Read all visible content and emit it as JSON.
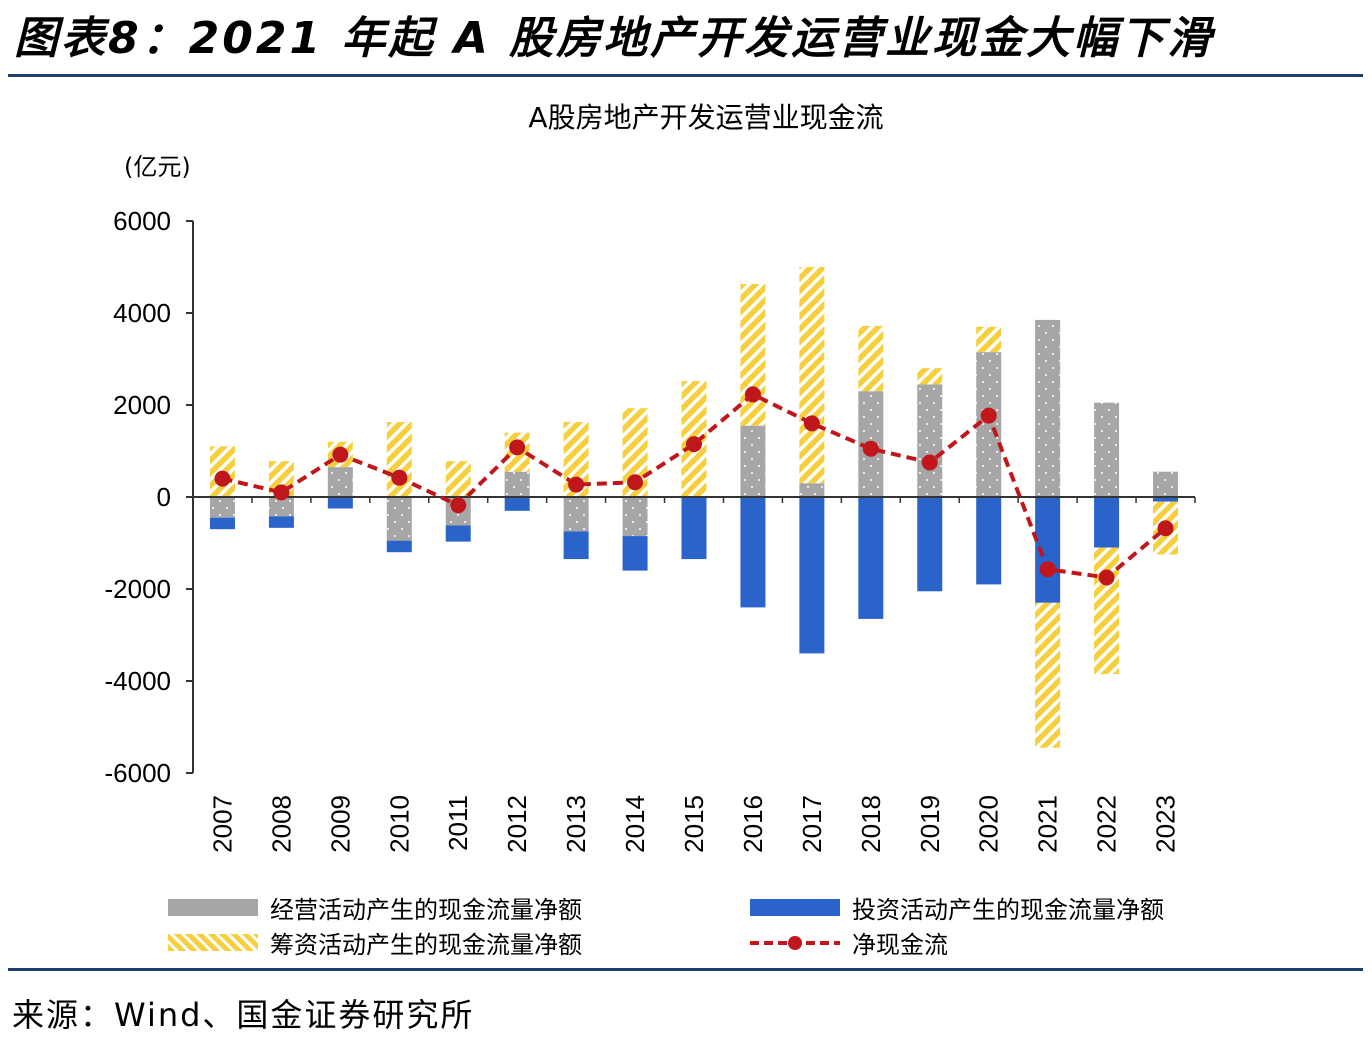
{
  "header": {
    "title": "图表8：2021 年起 A 股房地产开发运营业现金大幅下滑"
  },
  "footer": {
    "source": "来源：Wind、国金证券研究所"
  },
  "colors": {
    "operating": "#a6a6a6",
    "investing": "#2a63c9",
    "financing": "#f5cf3d",
    "net": "#c0171d"
  },
  "chart_data": {
    "type": "bar",
    "title": "A股房地产开发运营业现金流",
    "ylabel": "(亿元)",
    "ylim": [
      -6000,
      6000
    ],
    "yticks": [
      6000,
      4000,
      2000,
      0,
      -2000,
      -4000,
      -6000
    ],
    "categories": [
      "2007",
      "2008",
      "2009",
      "2010",
      "2011",
      "2012",
      "2013",
      "2014",
      "2015",
      "2016",
      "2017",
      "2018",
      "2019",
      "2020",
      "2021",
      "2022",
      "2023"
    ],
    "series": [
      {
        "name": "经营活动产生的现金流量净额",
        "type": "bar",
        "values": [
          -450,
          -420,
          650,
          -950,
          -620,
          550,
          -750,
          -850,
          0,
          1550,
          300,
          2300,
          2450,
          3150,
          3850,
          2050,
          550
        ]
      },
      {
        "name": "投资活动产生的现金流量净额",
        "type": "bar",
        "values": [
          -250,
          -250,
          -250,
          -250,
          -350,
          -300,
          -600,
          -750,
          -1350,
          -2400,
          -3400,
          -2650,
          -2050,
          -1900,
          -2300,
          -1100,
          -100
        ]
      },
      {
        "name": "筹资活动产生的现金流量净额",
        "type": "bar",
        "values": [
          1100,
          780,
          550,
          1630,
          780,
          850,
          1630,
          1930,
          2520,
          3080,
          4700,
          1420,
          350,
          550,
          -3150,
          -2750,
          -1150
        ]
      },
      {
        "name": "净现金流",
        "type": "line",
        "values": [
          400,
          100,
          920,
          420,
          -180,
          1080,
          270,
          320,
          1150,
          2230,
          1600,
          1050,
          750,
          1770,
          -1570,
          -1750,
          -680
        ]
      }
    ]
  }
}
